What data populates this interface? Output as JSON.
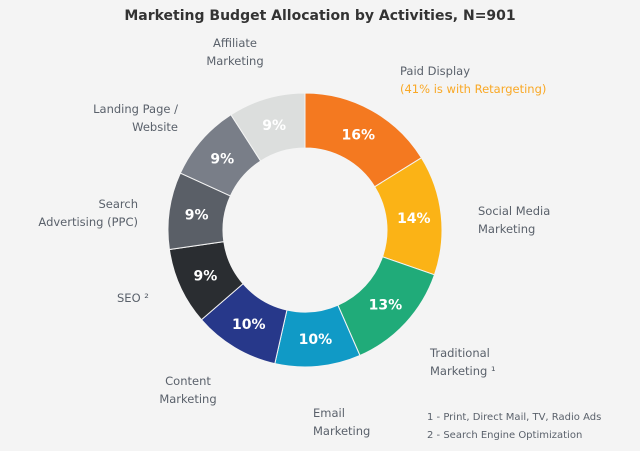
{
  "chart_data": {
    "type": "pie",
    "donut": true,
    "title": "Marketing Budget Allocation by Activities, N=901",
    "slices": [
      {
        "label": "Paid Display",
        "sublabel": "(41% is with Retargeting)",
        "value": 16,
        "display": "16%",
        "color": "#f47920"
      },
      {
        "label": "Social Media Marketing",
        "value": 14,
        "display": "14%",
        "color": "#fbb316"
      },
      {
        "label": "Traditional Marketing ¹",
        "value": 13,
        "display": "13%",
        "color": "#20ab79"
      },
      {
        "label": "Email Marketing",
        "value": 10,
        "display": "10%",
        "color": "#109ac6"
      },
      {
        "label": "Content Marketing",
        "value": 10,
        "display": "10%",
        "color": "#27388a"
      },
      {
        "label": "SEO ²",
        "value": 9,
        "display": "9%",
        "color": "#2a2d31"
      },
      {
        "label": "Search Advertising (PPC)",
        "value": 9,
        "display": "9%",
        "color": "#5a5f67"
      },
      {
        "label": "Landing Page / Website",
        "value": 9,
        "display": "9%",
        "color": "#797e88"
      },
      {
        "label": "Affiliate Marketing",
        "value": 9,
        "display": "9%",
        "color": "#dcdedd"
      }
    ],
    "footnotes": [
      "1 - Print, Direct Mail, TV, Radio Ads",
      "2 - Search Engine Optimization"
    ]
  }
}
